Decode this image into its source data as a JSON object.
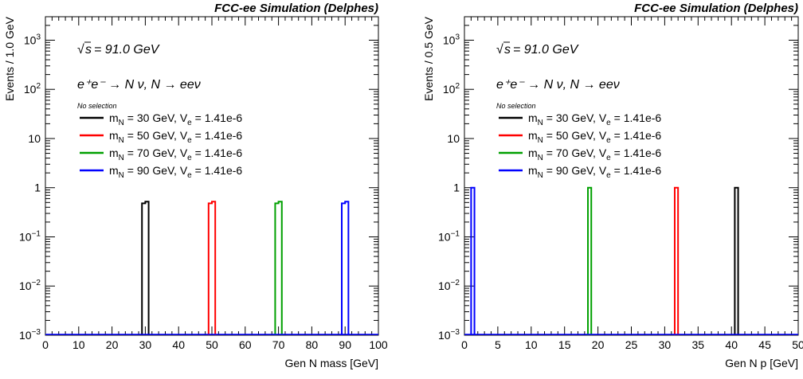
{
  "chart_data": [
    {
      "type": "histogram",
      "title": "FCC-ee Simulation (Delphes)",
      "xlabel": "Gen N mass [GeV]",
      "ylabel": "Events / 1.0 GeV",
      "xlim": [
        0,
        100
      ],
      "ylim": [
        0.001,
        3000
      ],
      "yscale": "log",
      "x_ticks": [
        "0",
        "10",
        "20",
        "30",
        "40",
        "50",
        "60",
        "70",
        "80",
        "90",
        "100"
      ],
      "annotation_sqrt": "= 91.0 GeV",
      "annotation_process": "e⁺e⁻ → N ν, N → eeν",
      "legend_header": "No selection",
      "legend_placement": "top-left",
      "series": [
        {
          "name": "m_N = 30 GeV, V_e = 1.41e-6",
          "color": "#000000",
          "bins": [
            [
              29,
              30,
              0.48
            ],
            [
              30,
              31,
              0.52
            ]
          ]
        },
        {
          "name": "m_N = 50 GeV, V_e = 1.41e-6",
          "color": "#ff0000",
          "bins": [
            [
              49,
              50,
              0.48
            ],
            [
              50,
              51,
              0.52
            ]
          ]
        },
        {
          "name": "m_N = 70 GeV, V_e = 1.41e-6",
          "color": "#00a000",
          "bins": [
            [
              69,
              70,
              0.48
            ],
            [
              70,
              71,
              0.52
            ]
          ]
        },
        {
          "name": "m_N = 90 GeV, V_e = 1.41e-6",
          "color": "#0000ff",
          "bins": [
            [
              89,
              90,
              0.48
            ],
            [
              90,
              91,
              0.52
            ]
          ]
        }
      ]
    },
    {
      "type": "histogram",
      "title": "FCC-ee Simulation (Delphes)",
      "xlabel": "Gen N p [GeV]",
      "ylabel": "Events / 0.5 GeV",
      "xlim": [
        0,
        50
      ],
      "ylim": [
        0.001,
        3000
      ],
      "yscale": "log",
      "x_ticks": [
        "0",
        "5",
        "10",
        "15",
        "20",
        "25",
        "30",
        "35",
        "40",
        "45",
        "50"
      ],
      "annotation_sqrt": "= 91.0 GeV",
      "annotation_process": "e⁺e⁻ → N ν, N → eeν",
      "legend_header": "No selection",
      "legend_placement": "top-left",
      "series": [
        {
          "name": "m_N = 30 GeV, V_e = 1.41e-6",
          "color": "#000000",
          "bins": [
            [
              40.5,
              41,
              1.0
            ]
          ]
        },
        {
          "name": "m_N = 50 GeV, V_e = 1.41e-6",
          "color": "#ff0000",
          "bins": [
            [
              31.5,
              32,
              1.0
            ]
          ]
        },
        {
          "name": "m_N = 70 GeV, V_e = 1.41e-6",
          "color": "#00a000",
          "bins": [
            [
              18.5,
              19,
              1.0
            ]
          ]
        },
        {
          "name": "m_N = 90 GeV, V_e = 1.41e-6",
          "color": "#0000ff",
          "bins": [
            [
              1,
              1.5,
              1.0
            ]
          ]
        }
      ]
    }
  ]
}
